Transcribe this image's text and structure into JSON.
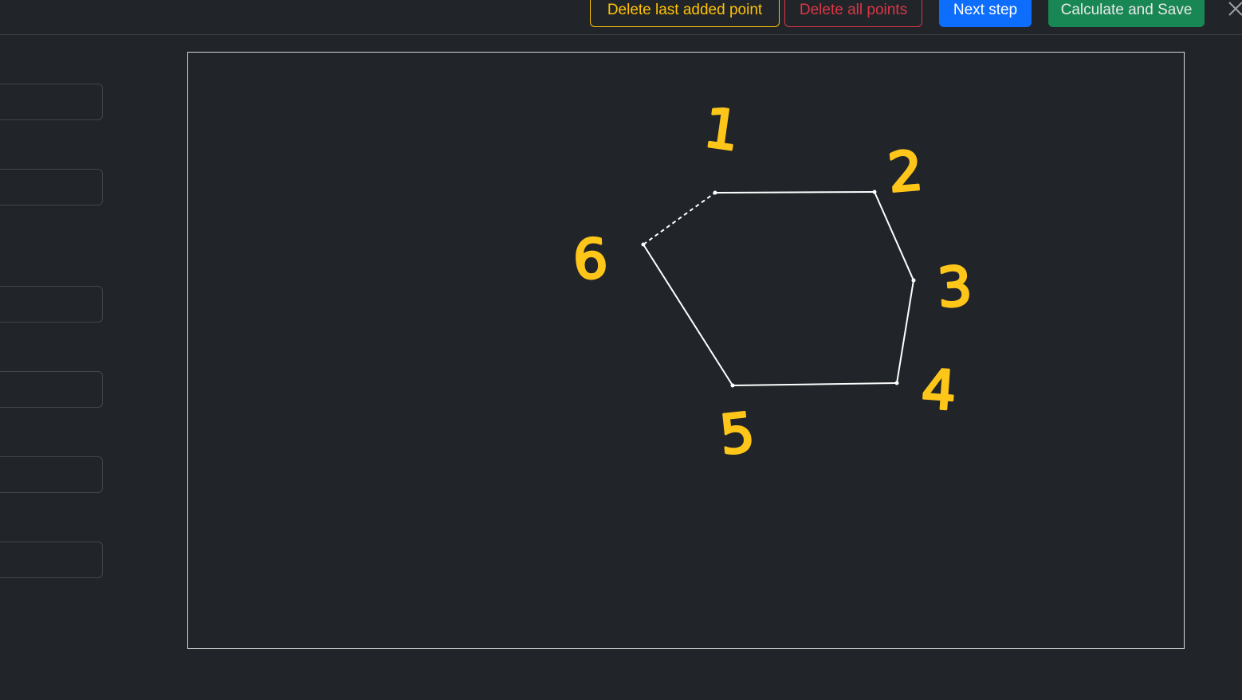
{
  "toolbar": {
    "delete_last_label": "Delete last added point",
    "delete_all_label": "Delete all points",
    "next_step_label": "Next step",
    "calculate_save_label": "Calculate and Save"
  },
  "close_icon": "close-icon",
  "sidebar": {
    "fields": [
      {
        "value": ""
      },
      {
        "value": ""
      },
      {
        "value": ""
      },
      {
        "value": ""
      },
      {
        "value": ""
      },
      {
        "value": ""
      }
    ]
  },
  "canvas": {
    "point_labels": [
      "1",
      "2",
      "3",
      "4",
      "5",
      "6"
    ],
    "line_color": "#ffffff",
    "annotation_color": "#ffc61a"
  }
}
